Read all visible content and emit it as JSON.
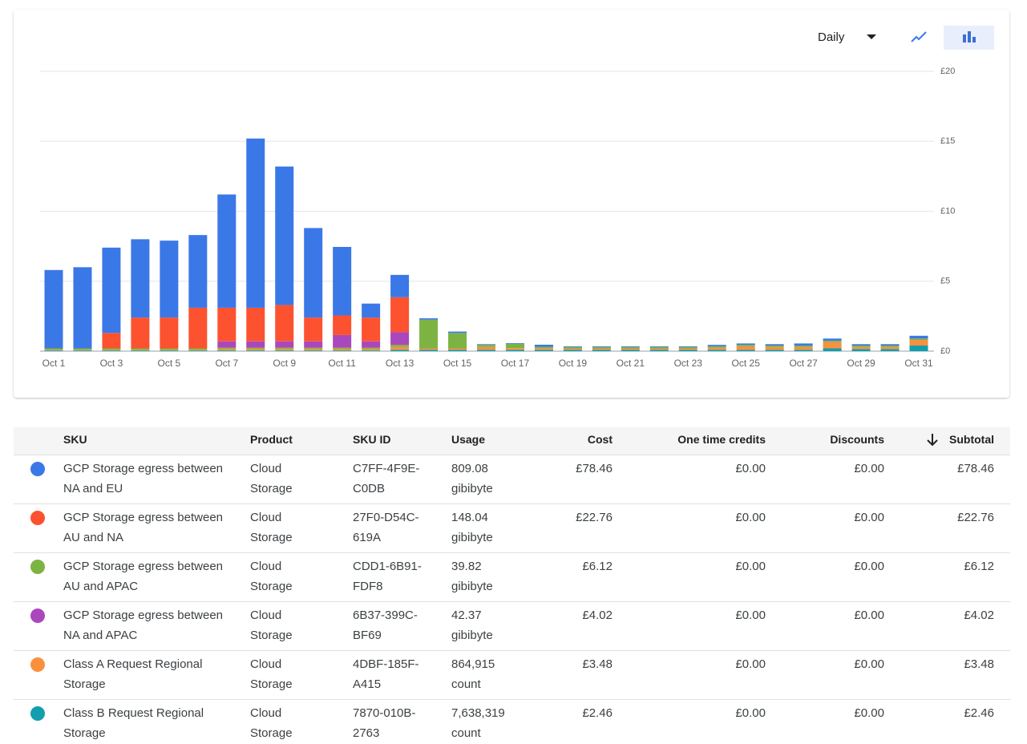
{
  "chart_data": {
    "type": "stacked-bar",
    "categories": [
      "Oct 1",
      null,
      "Oct 3",
      null,
      "Oct 5",
      null,
      "Oct 7",
      null,
      "Oct 9",
      null,
      "Oct 11",
      null,
      "Oct 13",
      null,
      "Oct 15",
      null,
      "Oct 17",
      null,
      "Oct 19",
      null,
      "Oct 21",
      null,
      "Oct 23",
      null,
      "Oct 25",
      null,
      "Oct 27",
      null,
      "Oct 29",
      null,
      "Oct 31"
    ],
    "series": [
      {
        "color": "#129eaf",
        "values": [
          0.05,
          0.05,
          0.05,
          0.05,
          0.05,
          0.05,
          0.05,
          0.05,
          0.05,
          0.05,
          0.05,
          0.05,
          0.1,
          0.1,
          0.1,
          0.1,
          0.1,
          0.1,
          0.1,
          0.1,
          0.1,
          0.1,
          0.1,
          0.1,
          0.1,
          0.1,
          0.1,
          0.2,
          0.15,
          0.15,
          0.4
        ]
      },
      {
        "color": "#fa903e",
        "values": [
          0.05,
          0.05,
          0.05,
          0.05,
          0.05,
          0.05,
          0.1,
          0.1,
          0.1,
          0.1,
          0.1,
          0.1,
          0.2,
          0.1,
          0.1,
          0.2,
          0.12,
          0.11,
          0.1,
          0.1,
          0.1,
          0.1,
          0.1,
          0.15,
          0.25,
          0.2,
          0.2,
          0.45,
          0.15,
          0.15,
          0.4
        ]
      },
      {
        "color": "#7cb342",
        "values": [
          0.1,
          0.1,
          0.1,
          0.1,
          0.1,
          0.1,
          0.1,
          0.1,
          0.1,
          0.1,
          0.1,
          0.1,
          0.15,
          2.05,
          1.1,
          0.15,
          0.3,
          0.1,
          0.1,
          0.1,
          0.1,
          0.1,
          0.1,
          0.1,
          0.1,
          0.1,
          0.1,
          0.1,
          0.1,
          0.1,
          0.1
        ]
      },
      {
        "color": "#ab47bc",
        "values": [
          0,
          0,
          0,
          0,
          0,
          0,
          0.45,
          0.45,
          0.45,
          0.45,
          0.9,
          0.45,
          0.9,
          0,
          0,
          0,
          0,
          0,
          0,
          0,
          0,
          0,
          0,
          0,
          0,
          0,
          0,
          0,
          0,
          0,
          0
        ]
      },
      {
        "color": "#fc5230",
        "values": [
          0,
          0,
          1.1,
          2.2,
          2.2,
          2.9,
          2.4,
          2.4,
          2.6,
          1.7,
          1.4,
          1.7,
          2.5,
          0,
          0,
          0,
          0,
          0,
          0,
          0,
          0,
          0,
          0,
          0,
          0,
          0,
          0,
          0,
          0,
          0,
          0
        ]
      },
      {
        "color": "#3b78e7",
        "values": [
          5.6,
          5.8,
          6.1,
          5.6,
          5.5,
          5.2,
          8.1,
          12.1,
          9.9,
          6.4,
          4.9,
          1.0,
          1.6,
          0.1,
          0.1,
          0.05,
          0.05,
          0.15,
          0.05,
          0.05,
          0.05,
          0.05,
          0.05,
          0.1,
          0.1,
          0.1,
          0.15,
          0.15,
          0.1,
          0.1,
          0.2
        ]
      }
    ],
    "ylim": [
      0,
      20
    ],
    "yticks": [
      {
        "value": 0,
        "label": "£0"
      },
      {
        "value": 5,
        "label": "£5"
      },
      {
        "value": 10,
        "label": "£10"
      },
      {
        "value": 15,
        "label": "£15"
      },
      {
        "value": 20,
        "label": "£20"
      }
    ],
    "grid": true
  },
  "controls": {
    "period": "Daily"
  },
  "table": {
    "headers": [
      "SKU",
      "Product",
      "SKU ID",
      "Usage",
      "Cost",
      "One time credits",
      "Discounts",
      "Subtotal"
    ],
    "rows": [
      [
        "GCP Storage egress between NA and EU",
        "Cloud Storage",
        "C7FF-4F9E-C0DB",
        "809.08 gibibyte",
        "£78.46",
        "£0.00",
        "£0.00",
        "£78.46"
      ],
      [
        "GCP Storage egress between AU and NA",
        "Cloud Storage",
        "27F0-D54C-619A",
        "148.04 gibibyte",
        "£22.76",
        "£0.00",
        "£0.00",
        "£22.76"
      ],
      [
        "GCP Storage egress between AU and APAC",
        "Cloud Storage",
        "CDD1-6B91-FDF8",
        "39.82 gibibyte",
        "£6.12",
        "£0.00",
        "£0.00",
        "£6.12"
      ],
      [
        "GCP Storage egress between NA and APAC",
        "Cloud Storage",
        "6B37-399C-BF69",
        "42.37 gibibyte",
        "£4.02",
        "£0.00",
        "£0.00",
        "£4.02"
      ],
      [
        "Class A Request Regional Storage",
        "Cloud Storage",
        "4DBF-185F-A415",
        "864,915 count",
        "£3.48",
        "£0.00",
        "£0.00",
        "£3.48"
      ],
      [
        "Class B Request Regional Storage",
        "Cloud Storage",
        "7870-010B-2763",
        "7,638,319 count",
        "£2.46",
        "£0.00",
        "£0.00",
        "£2.46"
      ]
    ],
    "row_colors": [
      "#3b78e7",
      "#fc5230",
      "#7cb342",
      "#ab47bc",
      "#fa903e",
      "#129eaf"
    ]
  }
}
